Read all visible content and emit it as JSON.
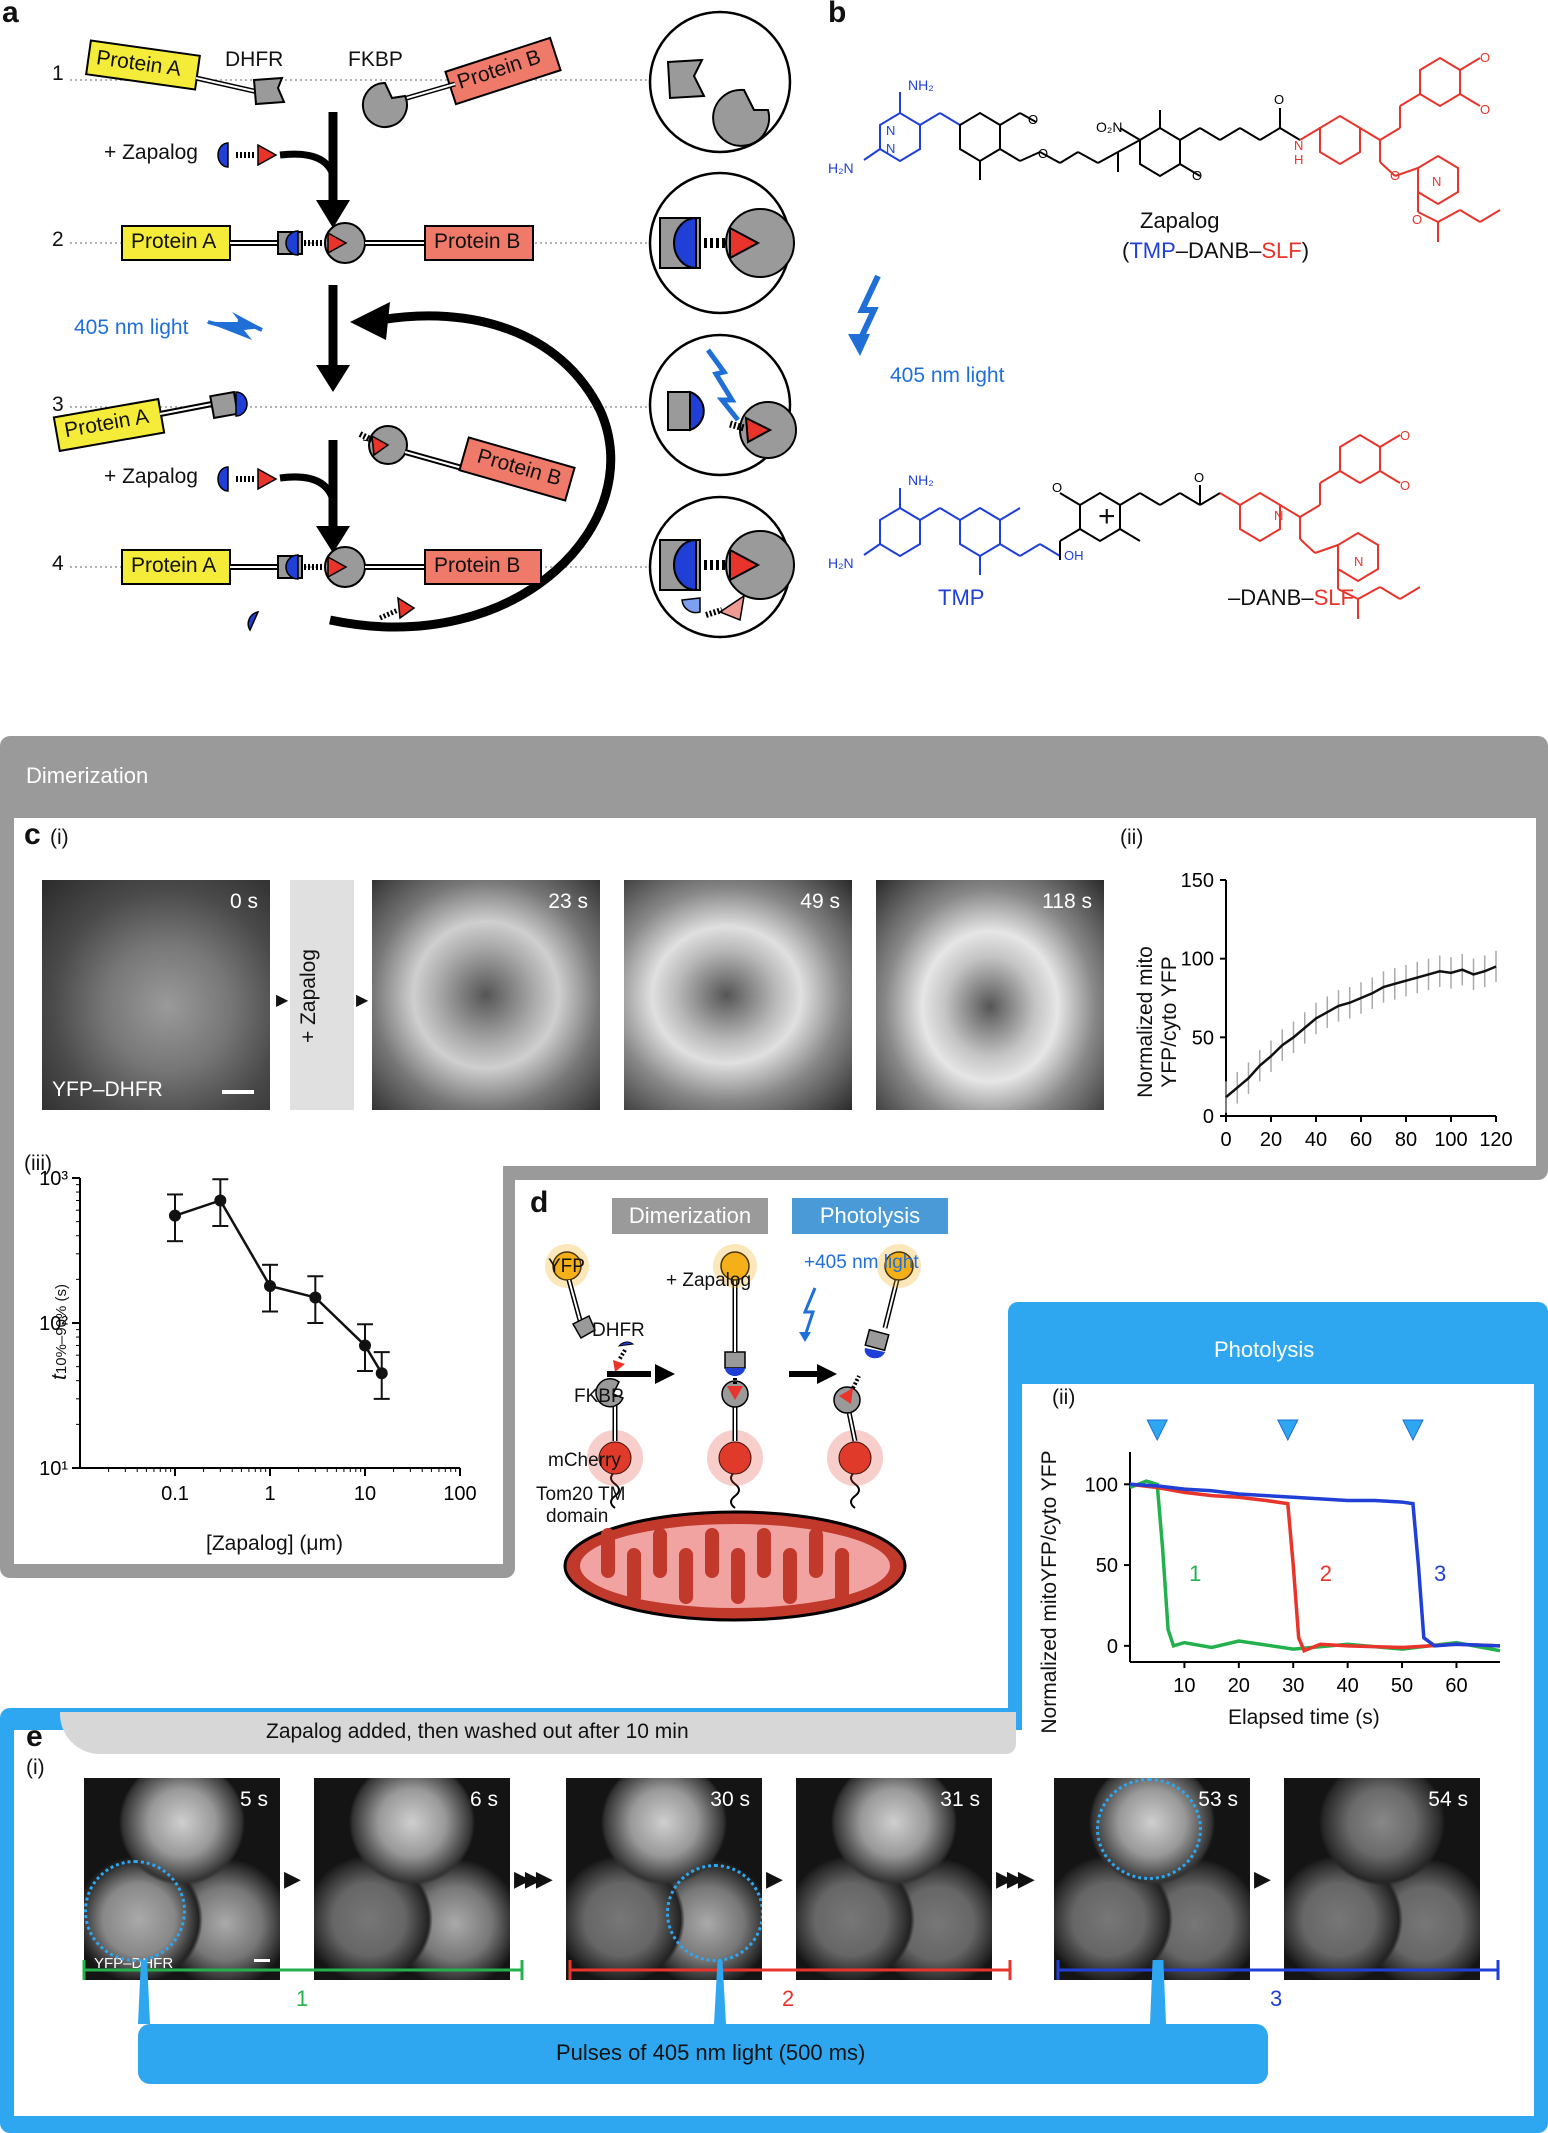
{
  "panel_a": {
    "letter": "a",
    "rows": [
      "1",
      "2",
      "3",
      "4"
    ],
    "protein_a": "Protein A",
    "protein_b": "Protein B",
    "dhfr": "DHFR",
    "fkbp": "FKBP",
    "add_zapalog": "+ Zapalog",
    "light": "405 nm light"
  },
  "panel_b": {
    "letter": "b",
    "zapalog_name": "Zapalog",
    "zapalog_sub_open": "(",
    "zapalog_tmp": "TMP",
    "zapalog_mid": "–DANB–",
    "zapalog_slf": "SLF",
    "zapalog_sub_close": ")",
    "light": "405 nm light",
    "plus": "+",
    "tmp_label": "TMP",
    "danb_prefix": "–DANB–",
    "danb_slf": "SLF",
    "atoms": {
      "nh2": "NH₂",
      "h2n": "H₂N",
      "no2": "O₂N",
      "ono": "O",
      "n": "N",
      "h": "H",
      "o": "O",
      "oh": "OH"
    }
  },
  "dimerization_band": {
    "label": "Dimerization"
  },
  "panel_c": {
    "letter": "c",
    "sub_i": "(i)",
    "sub_ii": "(ii)",
    "sub_iii": "(iii)",
    "zapalog_box": "+ Zapalog",
    "frames": [
      {
        "time": "0 s",
        "caption": "YFP–DHFR"
      },
      {
        "time": "23 s"
      },
      {
        "time": "49 s"
      },
      {
        "time": "118 s"
      }
    ],
    "plot_ii": {
      "ylabel_1": "Normalized mito",
      "ylabel_2": "YFP/cyto YFP",
      "yticks": [
        "0",
        "50",
        "100",
        "150"
      ],
      "xticks": [
        "0",
        "20",
        "40",
        "60",
        "80",
        "100",
        "120"
      ]
    },
    "plot_iii": {
      "ylabel": "t",
      "ylabel_sub": "10%–90% (s)",
      "yticks": [
        "10¹",
        "10²",
        "10³"
      ],
      "xticks": [
        "0.1",
        "1",
        "10",
        "100"
      ],
      "xlabel": "[Zapalog] (μm)"
    }
  },
  "panel_d": {
    "letter": "d",
    "dimerization": "Dimerization",
    "photolysis": "Photolysis",
    "yfp": "YFP",
    "dhfr": "DHFR",
    "fkbp": "FKBP",
    "mcherry": "mCherry",
    "tom20_1": "Tom20 TM",
    "tom20_2": "domain",
    "add_zapalog": "+ Zapalog",
    "light": "+405 nm light"
  },
  "photolysis_band": {
    "label": "Photolysis"
  },
  "panel_e": {
    "letter": "e",
    "sub_i": "(i)",
    "sub_ii": "(ii)",
    "banner": "Zapalog added, then washed out after 10 min",
    "frames": [
      {
        "time": "5 s",
        "caption": "YFP–DHFR"
      },
      {
        "time": "6 s"
      },
      {
        "time": "30 s"
      },
      {
        "time": "31 s"
      },
      {
        "time": "53 s"
      },
      {
        "time": "54 s"
      }
    ],
    "segments": [
      "1",
      "2",
      "3"
    ],
    "pulses": "Pulses of 405 nm light (500 ms)",
    "plot_ii": {
      "ylabel": "Normalized mitoYFP/cyto YFP",
      "xlabel": "Elapsed time (s)",
      "yticks": [
        "0",
        "50",
        "100"
      ],
      "xticks": [
        "10",
        "20",
        "30",
        "40",
        "50",
        "60"
      ],
      "curve_labels": [
        "1",
        "2",
        "3"
      ]
    }
  },
  "colors": {
    "green": "#22b14c",
    "red": "#e8342a",
    "blue": "#1f3fd6",
    "light_blue": "#2ea7f0",
    "gray_band": "#9a9a9a",
    "protein_a": "#f5ec3a",
    "protein_b": "#f07a6a",
    "chem_blue": "#1f3fd6",
    "chem_red": "#e8342a"
  },
  "chart_data": [
    {
      "type": "line",
      "panel": "c(ii)",
      "xlabel": "",
      "ylabel": "Normalized mito YFP/cyto YFP",
      "xlim": [
        0,
        120
      ],
      "ylim": [
        0,
        150
      ],
      "series": [
        {
          "x": [
            0,
            5,
            10,
            15,
            20,
            25,
            30,
            35,
            40,
            45,
            50,
            55,
            60,
            65,
            70,
            75,
            80,
            85,
            90,
            95,
            100,
            105,
            110,
            115,
            120
          ],
          "values": [
            12,
            18,
            24,
            32,
            38,
            45,
            50,
            56,
            62,
            66,
            70,
            72,
            75,
            78,
            82,
            84,
            86,
            88,
            90,
            92,
            91,
            93,
            90,
            92,
            95
          ]
        }
      ]
    },
    {
      "type": "line",
      "panel": "c(iii)",
      "xlabel": "[Zapalog] (μm)",
      "ylabel": "t 10%–90% (s)",
      "log_x": true,
      "log_y": true,
      "xlim": [
        0.01,
        100
      ],
      "ylim": [
        10,
        1000
      ],
      "series": [
        {
          "x": [
            0.1,
            0.3,
            1,
            3,
            10,
            15
          ],
          "values": [
            550,
            700,
            180,
            150,
            70,
            45
          ]
        }
      ]
    },
    {
      "type": "line",
      "panel": "e(ii)",
      "xlabel": "Elapsed time (s)",
      "ylabel": "Normalized mitoYFP/cyto YFP",
      "xlim": [
        0,
        68
      ],
      "ylim": [
        -10,
        120
      ],
      "series": [
        {
          "name": "1",
          "color": "#22b14c",
          "x": [
            0,
            3,
            5,
            6,
            7,
            8,
            10,
            15,
            20,
            30,
            40,
            50,
            60,
            68
          ],
          "values": [
            98,
            102,
            100,
            60,
            10,
            0,
            2,
            -1,
            3,
            -2,
            1,
            -2,
            2,
            -3
          ]
        },
        {
          "name": "2",
          "color": "#e8342a",
          "x": [
            0,
            5,
            10,
            15,
            20,
            25,
            29,
            30,
            31,
            32,
            35,
            40,
            50,
            60,
            68
          ],
          "values": [
            100,
            98,
            95,
            93,
            92,
            90,
            88,
            50,
            5,
            -3,
            1,
            0,
            -1,
            1,
            0
          ]
        },
        {
          "name": "3",
          "color": "#1f3fd6",
          "x": [
            0,
            5,
            10,
            15,
            20,
            25,
            30,
            35,
            40,
            45,
            50,
            52,
            53,
            54,
            56,
            60,
            68
          ],
          "values": [
            100,
            99,
            97,
            96,
            94,
            93,
            92,
            91,
            90,
            90,
            89,
            88,
            50,
            5,
            0,
            1,
            0
          ]
        }
      ]
    }
  ]
}
